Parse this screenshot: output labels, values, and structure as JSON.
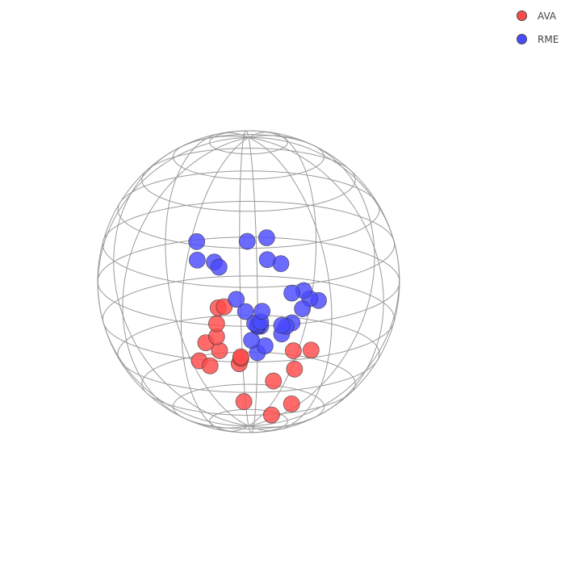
{
  "chart_data": {
    "type": "scatter",
    "subtype": "3d-sphere",
    "title": "",
    "legend_position": "top-right",
    "grid": true,
    "colors": {
      "AVA": "#ff4a4a",
      "RME": "#4a4aff",
      "grid": "#9a9a9a",
      "marker_edge": "#333333"
    },
    "series": [
      {
        "name": "AVA",
        "color": "#ff4a4a",
        "points": [
          [
            -0.26,
            0.12,
            0.96
          ],
          [
            -0.22,
            0.13,
            0.97
          ],
          [
            -0.27,
            0.01,
            0.96
          ],
          [
            -0.27,
            -0.08,
            0.96
          ],
          [
            -0.34,
            -0.13,
            0.93
          ],
          [
            -0.25,
            -0.18,
            0.95
          ],
          [
            -0.38,
            -0.27,
            0.88
          ],
          [
            -0.31,
            -0.3,
            0.9
          ],
          [
            -0.11,
            -0.22,
            0.97
          ],
          [
            -0.12,
            -0.27,
            0.96
          ],
          [
            -0.11,
            -0.23,
            0.97
          ],
          [
            0.24,
            -0.19,
            0.95
          ],
          [
            0.36,
            -0.2,
            0.91
          ],
          [
            0.25,
            -0.33,
            0.91
          ],
          [
            0.11,
            -0.41,
            0.91
          ],
          [
            -0.08,
            -0.58,
            0.81
          ],
          [
            0.24,
            -0.62,
            0.75
          ],
          [
            0.11,
            -0.71,
            0.7
          ]
        ]
      },
      {
        "name": "RME",
        "color": "#4a4aff",
        "points": [
          [
            -0.39,
            0.52,
            0.76
          ],
          [
            -0.39,
            0.41,
            0.82
          ],
          [
            -0.28,
            0.41,
            0.87
          ],
          [
            -0.25,
            0.38,
            0.89
          ],
          [
            -0.06,
            0.54,
            0.84
          ],
          [
            0.07,
            0.56,
            0.83
          ],
          [
            0.07,
            0.43,
            0.9
          ],
          [
            0.16,
            0.4,
            0.9
          ],
          [
            0.23,
            0.21,
            0.95
          ],
          [
            0.31,
            0.22,
            0.93
          ],
          [
            0.35,
            0.16,
            0.92
          ],
          [
            0.41,
            0.14,
            0.9
          ],
          [
            0.3,
            0.1,
            0.95
          ],
          [
            -0.14,
            0.18,
            0.97
          ],
          [
            -0.08,
            0.1,
            0.99
          ],
          [
            0.03,
            0.1,
            0.99
          ],
          [
            0.23,
            0.01,
            0.97
          ],
          [
            0.19,
            -0.01,
            0.98
          ],
          [
            0.16,
            0.0,
            0.99
          ],
          [
            0.16,
            -0.06,
            0.99
          ],
          [
            -0.04,
            -0.1,
            0.99
          ],
          [
            0.05,
            -0.14,
            0.99
          ],
          [
            0.0,
            -0.19,
            0.98
          ],
          [
            -0.02,
            0.02,
            1.0
          ],
          [
            0.02,
            0.03,
            1.0
          ],
          [
            0.0,
            0.01,
            1.0
          ],
          [
            0.0,
            0.0,
            1.0
          ],
          [
            0.02,
            0.0,
            1.0
          ],
          [
            0.0,
            0.0,
            1.0
          ],
          [
            0.0,
            0.0,
            1.0
          ]
        ]
      }
    ]
  },
  "legend": {
    "items": [
      {
        "label": "AVA",
        "color": "#ff4a4a"
      },
      {
        "label": "RME",
        "color": "#4a4aff"
      }
    ]
  }
}
